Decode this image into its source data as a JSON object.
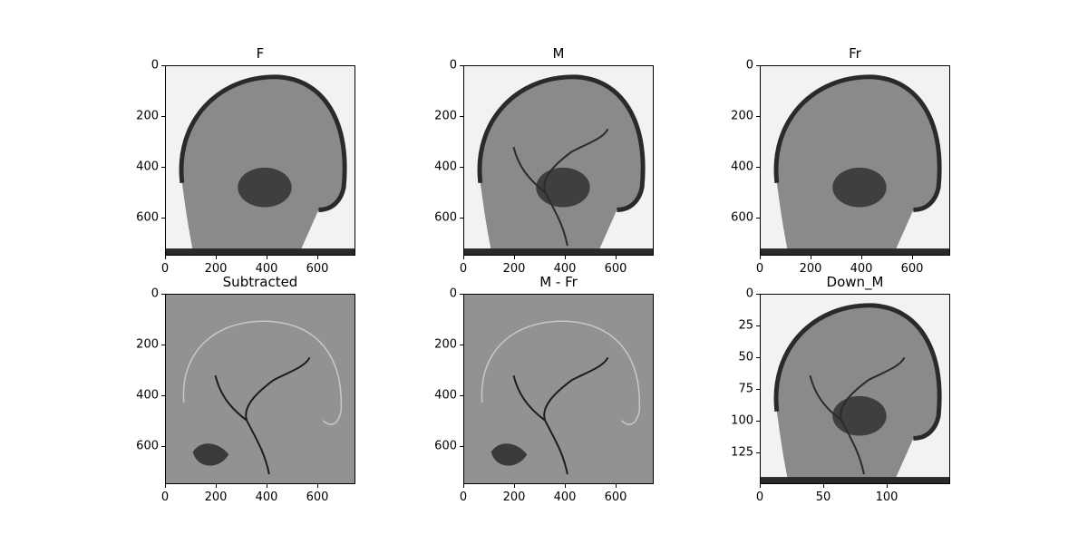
{
  "panels": [
    {
      "key": "F",
      "title": "F",
      "kind": "xray",
      "vessels": false,
      "yticks": [
        "0",
        "200",
        "400",
        "600"
      ],
      "xticks": [
        "0",
        "200",
        "400",
        "600"
      ]
    },
    {
      "key": "M",
      "title": "M",
      "kind": "xray",
      "vessels": true,
      "yticks": [
        "0",
        "200",
        "400",
        "600"
      ],
      "xticks": [
        "0",
        "200",
        "400",
        "600"
      ]
    },
    {
      "key": "Fr",
      "title": "Fr",
      "kind": "xray",
      "vessels": false,
      "yticks": [
        "0",
        "200",
        "400",
        "600"
      ],
      "xticks": [
        "0",
        "200",
        "400",
        "600"
      ]
    },
    {
      "key": "Subtracted",
      "title": "Subtracted",
      "kind": "diff",
      "vessels": true,
      "yticks": [
        "0",
        "200",
        "400",
        "600"
      ],
      "xticks": [
        "0",
        "200",
        "400",
        "600"
      ]
    },
    {
      "key": "M - Fr",
      "title": "M - Fr",
      "kind": "diff",
      "vessels": true,
      "yticks": [
        "0",
        "200",
        "400",
        "600"
      ],
      "xticks": [
        "0",
        "200",
        "400",
        "600"
      ]
    },
    {
      "key": "Down_M",
      "title": "Down_M",
      "kind": "xray",
      "vessels": true,
      "yticks": [
        "0",
        "25",
        "50",
        "75",
        "100",
        "125"
      ],
      "xticks": [
        "0",
        "50",
        "100"
      ]
    }
  ],
  "colors": {
    "diff_background": "#929292",
    "xray_dark": "#2a2a2a",
    "xray_light": "#f2f2f2"
  }
}
